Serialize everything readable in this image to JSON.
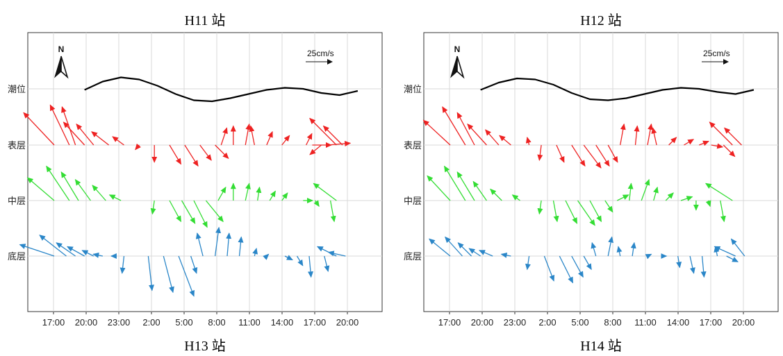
{
  "colors": {
    "tide": "#000000",
    "surface": "#ee2222",
    "middle": "#33dd33",
    "bottom": "#2a86c8",
    "grid": "#d9d9d9",
    "frame": "#333333"
  },
  "labels": {
    "scale": "25cm/s",
    "north": "N"
  },
  "chart_data": [
    {
      "type": "vector",
      "station_top": "H11 站",
      "station_bottom": "H13 站",
      "rows": [
        "潮位",
        "表层",
        "中层",
        "底层"
      ],
      "x_ticks": [
        "17:00",
        "20:00",
        "23:00",
        "2:00",
        "5:00",
        "8:00",
        "11:00",
        "14:00",
        "17:00",
        "20:00"
      ],
      "xlim": [
        0,
        10.3
      ],
      "tide_x": [
        1,
        1.6,
        2.2,
        2.8,
        3.4,
        4.0,
        4.6,
        5.2,
        5.8,
        6.4,
        7.0,
        7.6,
        8.2,
        8.8,
        9.4,
        10.0
      ],
      "tide_y": [
        -0.05,
        0.35,
        0.55,
        0.45,
        0.15,
        -0.25,
        -0.55,
        -0.6,
        -0.45,
        -0.25,
        -0.05,
        0.05,
        0.0,
        -0.2,
        -0.3,
        -0.1
      ],
      "surface": [
        [
          0.0,
          -0.8,
          0.85
        ],
        [
          0.5,
          -0.5,
          1.05
        ],
        [
          0.7,
          -0.35,
          1.0
        ],
        [
          1.0,
          -0.55,
          0.6
        ],
        [
          1.3,
          -0.45,
          0.55
        ],
        [
          1.8,
          -0.45,
          0.35
        ],
        [
          2.3,
          -0.3,
          0.22
        ],
        [
          2.8,
          -0.1,
          -0.12
        ],
        [
          3.3,
          0.0,
          -0.45
        ],
        [
          3.8,
          0.3,
          -0.5
        ],
        [
          4.3,
          0.35,
          -0.55
        ],
        [
          4.8,
          0.3,
          -0.4
        ],
        [
          5.3,
          0.35,
          -0.35
        ],
        [
          5.5,
          0.15,
          0.45
        ],
        [
          5.9,
          0.0,
          0.5
        ],
        [
          6.3,
          0.1,
          0.55
        ],
        [
          6.6,
          -0.1,
          0.5
        ],
        [
          7.0,
          0.15,
          0.35
        ],
        [
          7.5,
          0.2,
          0.25
        ],
        [
          8.3,
          0.15,
          0.3
        ],
        [
          8.5,
          0.5,
          0.0
        ],
        [
          8.8,
          -0.3,
          -0.25
        ],
        [
          9.0,
          0.6,
          0.05
        ],
        [
          9.3,
          -0.7,
          0.7
        ],
        [
          9.5,
          -0.5,
          0.5
        ]
      ],
      "middle": [
        [
          0.0,
          -0.7,
          0.6
        ],
        [
          0.5,
          -0.6,
          0.9
        ],
        [
          0.8,
          -0.45,
          0.75
        ],
        [
          1.2,
          -0.4,
          0.55
        ],
        [
          1.7,
          -0.35,
          0.4
        ],
        [
          2.2,
          -0.3,
          0.15
        ],
        [
          3.3,
          -0.05,
          -0.35
        ],
        [
          3.8,
          0.3,
          -0.55
        ],
        [
          4.2,
          0.35,
          -0.6
        ],
        [
          4.6,
          0.35,
          -0.7
        ],
        [
          5.0,
          0.45,
          -0.55
        ],
        [
          5.4,
          0.2,
          0.35
        ],
        [
          5.9,
          0.0,
          0.45
        ],
        [
          6.3,
          0.1,
          0.45
        ],
        [
          6.7,
          0.05,
          0.35
        ],
        [
          7.1,
          0.15,
          0.25
        ],
        [
          7.5,
          0.15,
          0.2
        ],
        [
          8.2,
          0.25,
          0.0
        ],
        [
          8.6,
          0.1,
          -0.15
        ],
        [
          9.1,
          0.1,
          -0.55
        ],
        [
          9.3,
          -0.6,
          0.45
        ]
      ],
      "bottom": [
        [
          0.0,
          -0.9,
          0.3
        ],
        [
          0.4,
          -0.7,
          0.55
        ],
        [
          0.7,
          -0.5,
          0.35
        ],
        [
          1.0,
          -0.45,
          0.25
        ],
        [
          1.3,
          -0.3,
          0.15
        ],
        [
          1.6,
          -0.25,
          0.05
        ],
        [
          2.0,
          -0.1,
          0.0
        ],
        [
          2.3,
          -0.05,
          -0.45
        ],
        [
          3.1,
          0.1,
          -0.9
        ],
        [
          3.6,
          0.25,
          -0.95
        ],
        [
          4.1,
          0.4,
          -1.05
        ],
        [
          4.5,
          0.15,
          -0.45
        ],
        [
          4.9,
          -0.15,
          0.6
        ],
        [
          5.3,
          0.1,
          0.75
        ],
        [
          5.7,
          0.05,
          0.6
        ],
        [
          6.1,
          0.05,
          0.5
        ],
        [
          6.6,
          0.05,
          0.2
        ],
        [
          7.0,
          0.05,
          0.05
        ],
        [
          7.6,
          0.2,
          -0.1
        ],
        [
          8.0,
          0.15,
          -0.25
        ],
        [
          8.4,
          0.05,
          -0.55
        ],
        [
          8.9,
          0.1,
          -0.4
        ],
        [
          9.3,
          -0.5,
          0.25
        ],
        [
          9.6,
          -0.45,
          0.1
        ]
      ]
    },
    {
      "type": "vector",
      "station_top": "H12 站",
      "station_bottom": "H14 站",
      "rows": [
        "潮位",
        "表层",
        "中层",
        "底层"
      ],
      "x_ticks": [
        "17:00",
        "20:00",
        "23:00",
        "2:00",
        "5:00",
        "8:00",
        "11:00",
        "14:00",
        "17:00",
        "20:00"
      ],
      "xlim": [
        0,
        10.3
      ],
      "tide_x": [
        1,
        1.6,
        2.2,
        2.8,
        3.4,
        4.0,
        4.6,
        5.2,
        5.8,
        6.4,
        7.0,
        7.6,
        8.2,
        8.8,
        9.4,
        10.0
      ],
      "tide_y": [
        -0.05,
        0.3,
        0.5,
        0.45,
        0.2,
        -0.2,
        -0.5,
        -0.55,
        -0.45,
        -0.25,
        -0.05,
        0.05,
        0.0,
        -0.15,
        -0.25,
        -0.05
      ],
      "surface": [
        [
          0.0,
          -0.7,
          0.65
        ],
        [
          0.5,
          -0.6,
          1.0
        ],
        [
          0.8,
          -0.45,
          0.85
        ],
        [
          1.2,
          -0.5,
          0.55
        ],
        [
          1.6,
          -0.35,
          0.4
        ],
        [
          2.0,
          -0.3,
          0.25
        ],
        [
          2.6,
          -0.05,
          0.2
        ],
        [
          3.0,
          -0.05,
          -0.4
        ],
        [
          3.5,
          0.2,
          -0.45
        ],
        [
          4.0,
          0.35,
          -0.55
        ],
        [
          4.4,
          0.45,
          -0.6
        ],
        [
          4.8,
          0.35,
          -0.55
        ],
        [
          5.2,
          0.25,
          -0.45
        ],
        [
          5.6,
          0.1,
          0.55
        ],
        [
          6.1,
          0.05,
          0.5
        ],
        [
          6.5,
          0.1,
          0.55
        ],
        [
          6.8,
          -0.1,
          0.45
        ],
        [
          7.2,
          0.2,
          0.2
        ],
        [
          7.7,
          0.25,
          0.15
        ],
        [
          8.2,
          0.25,
          0.1
        ],
        [
          8.6,
          0.3,
          -0.05
        ],
        [
          9.0,
          0.3,
          -0.3
        ],
        [
          9.3,
          -0.6,
          0.6
        ],
        [
          9.6,
          -0.45,
          0.45
        ]
      ],
      "middle": [
        [
          0.0,
          -0.6,
          0.65
        ],
        [
          0.5,
          -0.55,
          0.9
        ],
        [
          0.8,
          -0.45,
          0.75
        ],
        [
          1.2,
          -0.35,
          0.5
        ],
        [
          1.7,
          -0.3,
          0.3
        ],
        [
          2.3,
          -0.2,
          0.15
        ],
        [
          3.0,
          -0.05,
          -0.35
        ],
        [
          3.4,
          0.1,
          -0.55
        ],
        [
          3.8,
          0.3,
          -0.6
        ],
        [
          4.2,
          0.45,
          -0.65
        ],
        [
          4.6,
          0.3,
          -0.55
        ],
        [
          5.1,
          0.2,
          -0.3
        ],
        [
          5.5,
          0.3,
          0.15
        ],
        [
          5.9,
          0.05,
          0.45
        ],
        [
          6.3,
          0.2,
          0.55
        ],
        [
          6.7,
          0.1,
          0.35
        ],
        [
          7.1,
          0.2,
          0.2
        ],
        [
          7.6,
          0.3,
          0.1
        ],
        [
          8.1,
          0.0,
          -0.25
        ],
        [
          8.5,
          0.05,
          -0.15
        ],
        [
          8.9,
          0.1,
          -0.55
        ],
        [
          9.3,
          -0.7,
          0.45
        ]
      ],
      "bottom": [
        [
          0.0,
          -0.55,
          0.45
        ],
        [
          0.4,
          -0.45,
          0.5
        ],
        [
          0.7,
          -0.35,
          0.35
        ],
        [
          1.0,
          -0.3,
          0.2
        ],
        [
          1.4,
          -0.35,
          0.15
        ],
        [
          2.0,
          -0.25,
          0.05
        ],
        [
          2.6,
          -0.05,
          -0.35
        ],
        [
          3.1,
          0.25,
          -0.65
        ],
        [
          3.6,
          0.35,
          -0.7
        ],
        [
          4.0,
          0.3,
          -0.55
        ],
        [
          4.4,
          0.2,
          -0.35
        ],
        [
          4.8,
          -0.1,
          0.35
        ],
        [
          5.2,
          0.1,
          0.5
        ],
        [
          5.6,
          -0.05,
          0.25
        ],
        [
          6.0,
          0.05,
          0.35
        ],
        [
          6.5,
          0.1,
          0.05
        ],
        [
          7.0,
          0.1,
          0.0
        ],
        [
          7.5,
          0.05,
          -0.3
        ],
        [
          7.9,
          0.1,
          -0.45
        ],
        [
          8.3,
          0.05,
          -0.55
        ],
        [
          8.8,
          -0.05,
          0.25
        ],
        [
          9.1,
          0.3,
          -0.15
        ],
        [
          9.4,
          -0.55,
          0.25
        ],
        [
          9.7,
          -0.35,
          0.45
        ]
      ]
    }
  ]
}
